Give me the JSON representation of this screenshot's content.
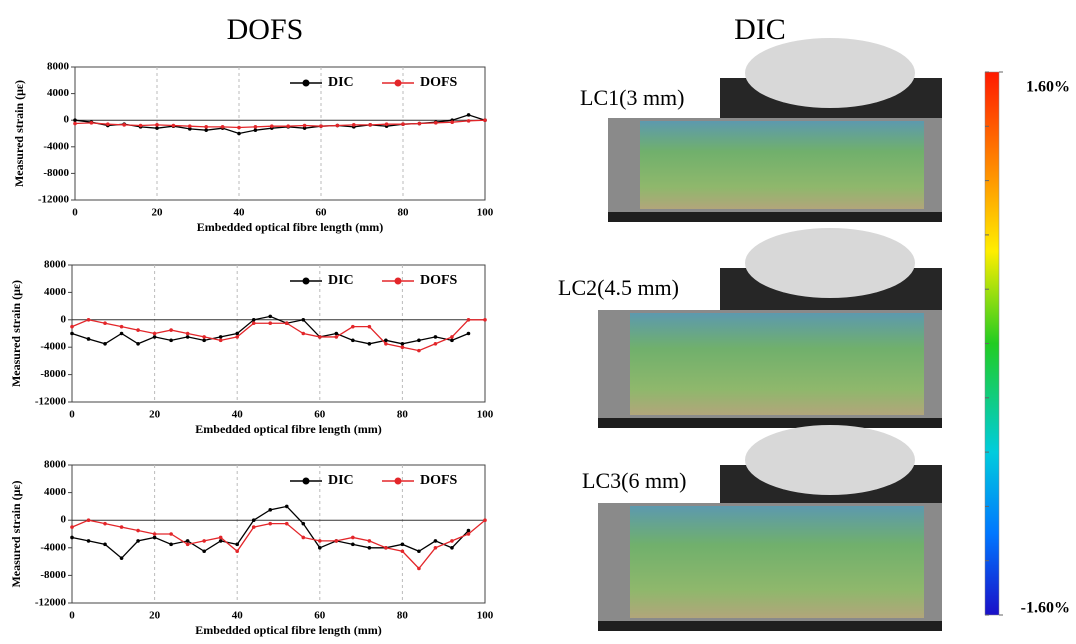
{
  "headings": [
    "DOFS",
    "DIC"
  ],
  "dic_panels": [
    {
      "label": "LC1(3 mm)"
    },
    {
      "label": "LC2(4.5 mm)"
    },
    {
      "label": "LC3(6 mm)"
    }
  ],
  "colorbar": {
    "lim": [
      -1.6,
      1.6
    ],
    "ticks": [
      {
        "value": 1.6,
        "label": "1.60%"
      },
      {
        "value": -1.6,
        "label": "-1.60%"
      }
    ]
  },
  "chart_data": [
    {
      "type": "line",
      "xlabel": "Embedded optical fibre length (mm)",
      "ylabel": "Measured strain (με)",
      "xlim": [
        0,
        100
      ],
      "xticks": [
        0,
        20,
        40,
        60,
        80,
        100
      ],
      "ylim": [
        -12000,
        8000
      ],
      "yticks": [
        -12000,
        -8000,
        -4000,
        0,
        4000,
        8000
      ],
      "grid": true,
      "legend": "upper right",
      "x": [
        0,
        4,
        8,
        12,
        16,
        20,
        24,
        28,
        32,
        36,
        40,
        44,
        48,
        52,
        56,
        60,
        64,
        68,
        72,
        76,
        80,
        84,
        88,
        92,
        96,
        100
      ],
      "series": [
        {
          "name": "DIC",
          "color": "#000000",
          "values": [
            0,
            -300,
            -800,
            -600,
            -1000,
            -1200,
            -900,
            -1300,
            -1500,
            -1200,
            -2000,
            -1500,
            -1200,
            -1000,
            -1200,
            -900,
            -800,
            -1000,
            -700,
            -900,
            -600,
            -500,
            -300,
            0,
            800,
            0
          ]
        },
        {
          "name": "DOFS",
          "color": "#e3262a",
          "values": [
            -500,
            -400,
            -600,
            -700,
            -800,
            -700,
            -800,
            -900,
            -1000,
            -1000,
            -1100,
            -1000,
            -900,
            -900,
            -800,
            -900,
            -800,
            -700,
            -700,
            -600,
            -600,
            -500,
            -400,
            -300,
            -100,
            0
          ]
        }
      ]
    },
    {
      "type": "line",
      "xlabel": "Embedded optical fibre length (mm)",
      "ylabel": "Measured strain (με)",
      "xlim": [
        0,
        100
      ],
      "xticks": [
        0,
        20,
        40,
        60,
        80,
        100
      ],
      "ylim": [
        -12000,
        8000
      ],
      "yticks": [
        -12000,
        -8000,
        -4000,
        0,
        4000,
        8000
      ],
      "grid": true,
      "legend": "upper right",
      "x": [
        0,
        4,
        8,
        12,
        16,
        20,
        24,
        28,
        32,
        36,
        40,
        44,
        48,
        52,
        56,
        60,
        64,
        68,
        72,
        76,
        80,
        84,
        88,
        92,
        96,
        100
      ],
      "series": [
        {
          "name": "DIC",
          "color": "#000000",
          "values": [
            -2000,
            -2800,
            -3500,
            -2000,
            -3500,
            -2500,
            -3000,
            -2500,
            -3000,
            -2500,
            -2000,
            0,
            500,
            -500,
            0,
            -2500,
            -2000,
            -3000,
            -3500,
            -3000,
            -3500,
            -3000,
            -2500,
            -3000,
            -2000,
            null
          ]
        },
        {
          "name": "DOFS",
          "color": "#e3262a",
          "values": [
            -1000,
            0,
            -500,
            -1000,
            -1500,
            -2000,
            -1500,
            -2000,
            -2500,
            -3000,
            -2500,
            -500,
            -500,
            -500,
            -2000,
            -2500,
            -2500,
            -1000,
            -1000,
            -3500,
            -4000,
            -4500,
            -3500,
            -2500,
            0,
            0
          ]
        }
      ]
    },
    {
      "type": "line",
      "xlabel": "Embedded optical fibre length (mm)",
      "ylabel": "Measured strain (με)",
      "xlim": [
        0,
        100
      ],
      "xticks": [
        0,
        20,
        40,
        60,
        80,
        100
      ],
      "ylim": [
        -12000,
        8000
      ],
      "yticks": [
        -12000,
        -8000,
        -4000,
        0,
        4000,
        8000
      ],
      "grid": true,
      "legend": "upper right",
      "x": [
        0,
        4,
        8,
        12,
        16,
        20,
        24,
        28,
        32,
        36,
        40,
        44,
        48,
        52,
        56,
        60,
        64,
        68,
        72,
        76,
        80,
        84,
        88,
        92,
        96,
        100
      ],
      "series": [
        {
          "name": "DIC",
          "color": "#000000",
          "values": [
            -2500,
            -3000,
            -3500,
            -5500,
            -3000,
            -2500,
            -3500,
            -3000,
            -4500,
            -3000,
            -3500,
            0,
            1500,
            2000,
            -500,
            -4000,
            -3000,
            -3500,
            -4000,
            -4000,
            -3500,
            -4500,
            -3000,
            -4000,
            -1500,
            null
          ]
        },
        {
          "name": "DOFS",
          "color": "#e3262a",
          "values": [
            -1000,
            0,
            -500,
            -1000,
            -1500,
            -2000,
            -2000,
            -3500,
            -3000,
            -2500,
            -4500,
            -1000,
            -500,
            -500,
            -2500,
            -3000,
            -3000,
            -2500,
            -3000,
            -4000,
            -4500,
            -7000,
            -4000,
            -3000,
            -2000,
            0
          ]
        }
      ]
    }
  ]
}
